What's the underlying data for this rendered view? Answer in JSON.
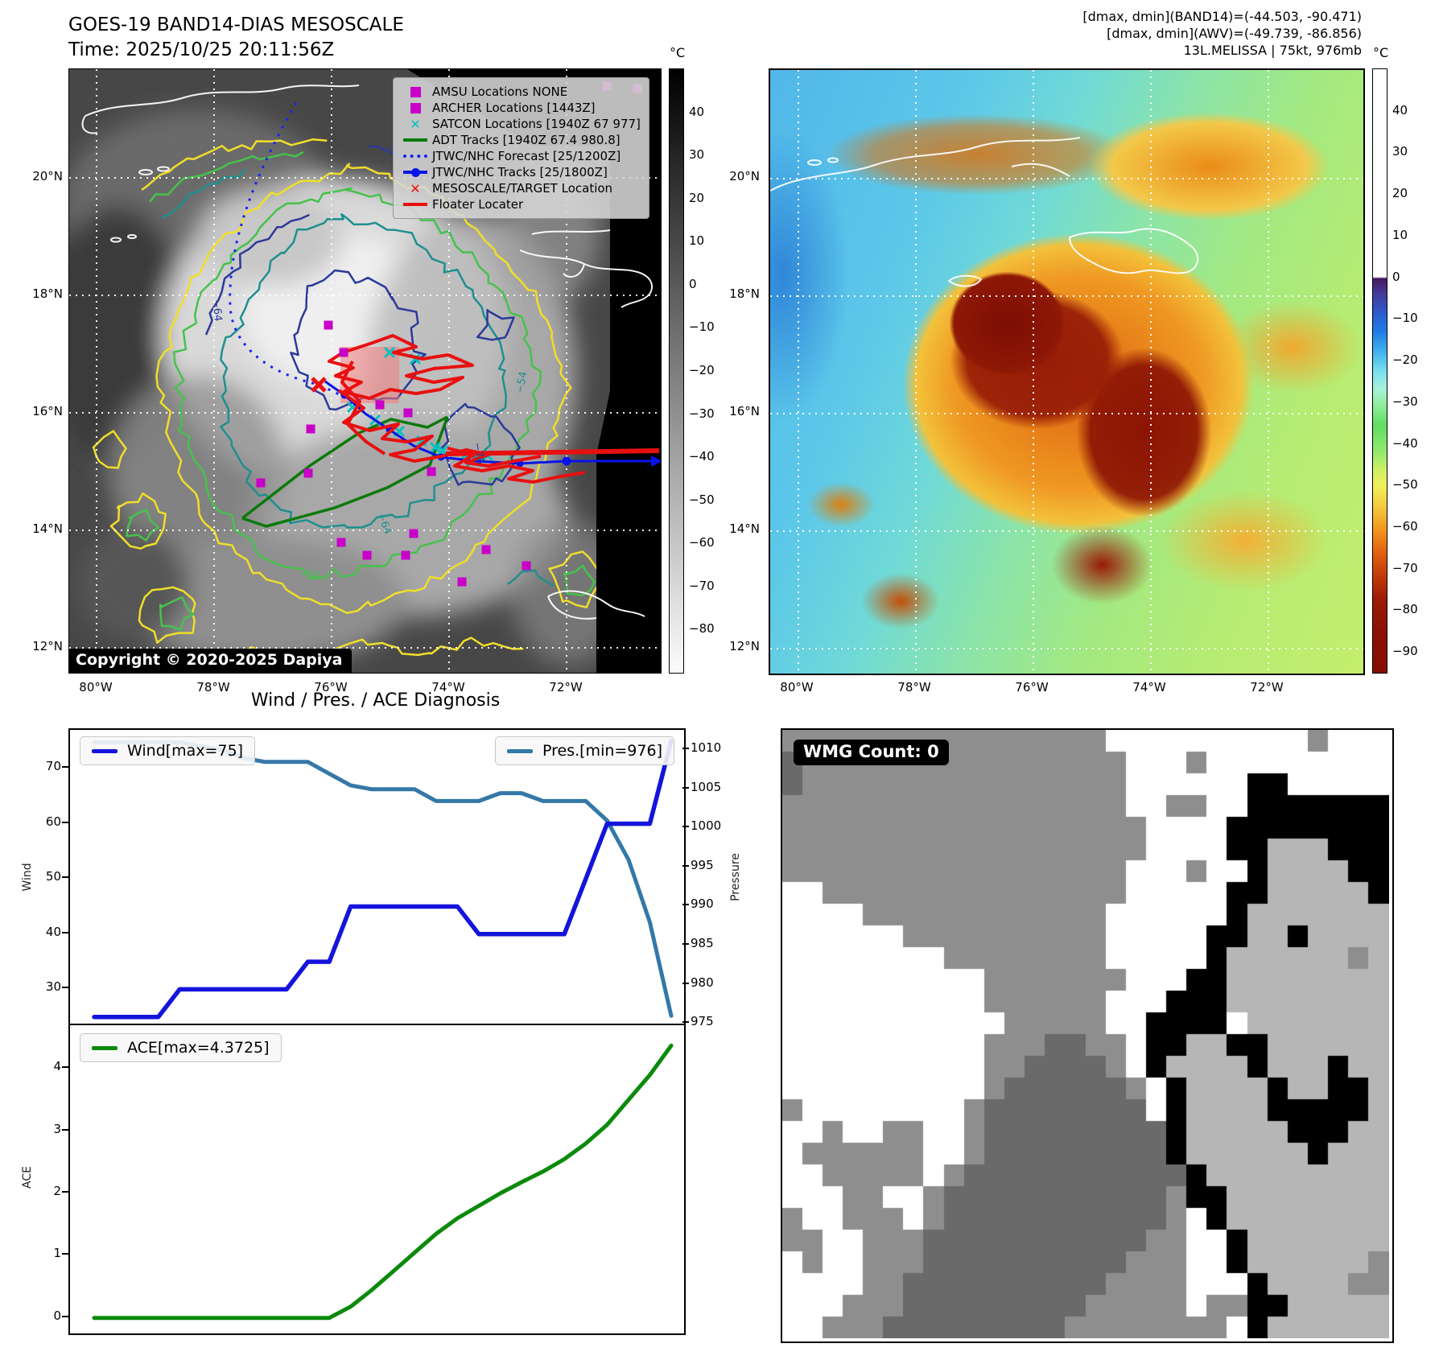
{
  "header": {
    "title_line1": "GOES-19 BAND14-DIAS MESOSCALE",
    "title_line2": "Time: 2025/10/25 20:11:56Z",
    "right_lines": [
      "[dmax, dmin](BAND14)=(-44.503, -90.471)",
      "[dmax, dmin](AWV)=(-49.739, -86.856)",
      "13L.MELISSA | 75kt, 976mb"
    ]
  },
  "map_axes": {
    "lat": [
      "20°N",
      "18°N",
      "16°N",
      "14°N",
      "12°N"
    ],
    "lon": [
      "80°W",
      "78°W",
      "76°W",
      "74°W",
      "72°W"
    ]
  },
  "band14_map": {
    "copyright": "Copyright © 2020-2025 Dapiya",
    "contour_labels": [
      "−76",
      "−64",
      "−54"
    ],
    "colors": {
      "amsu": "#c800c8",
      "satcon": "#00c2c2",
      "adt": "#0a7a0a",
      "forecast": "#1822f0",
      "jtwc": "#0814e8",
      "target": "#ee1111",
      "floater": "#e81010",
      "contours": {
        "yellow": "#f0de2a",
        "green": "#46c24c",
        "teal": "#1f8f8f",
        "navy": "#2b3a9a"
      }
    },
    "legend_items": [
      {
        "label": "AMSU Locations NONE",
        "marker": "square",
        "color": "#c800c8"
      },
      {
        "label": "ARCHER Locations [1443Z]",
        "marker": "square",
        "color": "#c800c8"
      },
      {
        "label": "SATCON Locations [1940Z 67 977]",
        "marker": "x",
        "color": "#00c2c2"
      },
      {
        "label": "ADT Tracks [1940Z 67.4 980.8]",
        "marker": "line",
        "color": "#0a7a0a"
      },
      {
        "label": "JTWC/NHC Forecast [25/1200Z]",
        "marker": "dotted",
        "color": "#1822f0"
      },
      {
        "label": "JTWC/NHC Tracks [25/1800Z]",
        "marker": "line-dot",
        "color": "#0814e8"
      },
      {
        "label": "MESOSCALE/TARGET Location",
        "marker": "x",
        "color": "#ee1111"
      },
      {
        "label": "Floater Locater",
        "marker": "line",
        "color": "#e81010"
      }
    ],
    "colorbar": {
      "unit": "°C",
      "ticks": [
        {
          "v": 40,
          "t": "40"
        },
        {
          "v": 30,
          "t": "30"
        },
        {
          "v": 20,
          "t": "20"
        },
        {
          "v": 10,
          "t": "10"
        },
        {
          "v": 0,
          "t": "0"
        },
        {
          "v": -10,
          "t": "−10"
        },
        {
          "v": -20,
          "t": "−20"
        },
        {
          "v": -30,
          "t": "−30"
        },
        {
          "v": -40,
          "t": "−40"
        },
        {
          "v": -50,
          "t": "−50"
        },
        {
          "v": -60,
          "t": "−60"
        },
        {
          "v": -70,
          "t": "−70"
        },
        {
          "v": -80,
          "t": "−80"
        }
      ]
    }
  },
  "awv_map": {
    "colorbar": {
      "unit": "°C",
      "ticks": [
        {
          "v": 40,
          "t": "40"
        },
        {
          "v": 30,
          "t": "30"
        },
        {
          "v": 20,
          "t": "20"
        },
        {
          "v": 10,
          "t": "10"
        },
        {
          "v": 0,
          "t": "0"
        },
        {
          "v": -10,
          "t": "−10"
        },
        {
          "v": -20,
          "t": "−20"
        },
        {
          "v": -30,
          "t": "−30"
        },
        {
          "v": -40,
          "t": "−40"
        },
        {
          "v": -50,
          "t": "−50"
        },
        {
          "v": -60,
          "t": "−60"
        },
        {
          "v": -70,
          "t": "−70"
        },
        {
          "v": -80,
          "t": "−80"
        },
        {
          "v": -90,
          "t": "−90"
        }
      ]
    }
  },
  "chart_data": [
    {
      "type": "line",
      "title": "Wind / Pres. / ACE Diagnosis",
      "x_points": 28,
      "series": [
        {
          "name": "Wind[max=75]",
          "yaxis": "left",
          "color": "#1414dc",
          "values": [
            25,
            25,
            25,
            25,
            30,
            30,
            30,
            30,
            30,
            30,
            35,
            35,
            45,
            45,
            45,
            45,
            45,
            45,
            40,
            40,
            40,
            40,
            40,
            50,
            60,
            60,
            60,
            75
          ]
        },
        {
          "name": "Pres.[min=976]",
          "yaxis": "right",
          "color": "#3478a8",
          "values": [
            1011,
            1011,
            1011,
            1011,
            1011,
            1010.5,
            1010,
            1009,
            1008.5,
            1008.5,
            1008.5,
            1007,
            1005.5,
            1005,
            1005,
            1005,
            1003.5,
            1003.5,
            1003.5,
            1004.5,
            1004.5,
            1003.5,
            1003.5,
            1003.5,
            1001,
            996,
            988,
            976
          ]
        }
      ],
      "ylabel_left": "Wind",
      "ylabel_right": "Pressure",
      "yticks_left": [
        30,
        40,
        50,
        60,
        70
      ],
      "ylim_left": [
        23.5,
        77
      ],
      "yticks_right": [
        975,
        980,
        985,
        990,
        995,
        1000,
        1005,
        1010
      ],
      "ylim_right": [
        974.8,
        1012.6
      ],
      "xticklabels": [],
      "legend_position": "upper-left and upper-right"
    },
    {
      "type": "line",
      "series": [
        {
          "name": "ACE[max=4.3725]",
          "color": "#0b8a0b",
          "values": [
            0,
            0,
            0,
            0,
            0,
            0,
            0,
            0,
            0,
            0,
            0,
            0,
            0.18,
            0.45,
            0.75,
            1.05,
            1.35,
            1.6,
            1.8,
            2.0,
            2.18,
            2.35,
            2.55,
            2.8,
            3.1,
            3.5,
            3.9,
            4.3725
          ]
        }
      ],
      "ylabel": "ACE",
      "yticks": [
        0,
        1,
        2,
        3,
        4
      ],
      "ylim": [
        -0.25,
        4.7
      ],
      "xticklabels": []
    }
  ],
  "wmg": {
    "label": "WMG Count: 0",
    "palette": {
      "W": "#ffffff",
      "G": "#8e8e8e",
      "D": "#6a6a6a",
      "L": "#b6b6b6",
      "B": "#000000"
    },
    "rows": [
      "GGGGGGGGGGGGGGGGWWWWWWWWWWGWWW",
      "DGGGGGGGGGGGGGGGGWWWGWWWWWWWWW",
      "DGGGGGGGGGGGGGGGGWWWWWWBBWWWWW",
      "GGGGGGGGGGGGGGGGGWWGGWWBBBBBBB",
      "GGGGGGGGGGGGGGGGGGWWWWBBBBBBBB",
      "GGGGGGGGGGGGGGGGGGWWWWBBLLLBBB",
      "GGGGGGGGGGGGGGGGGWWWGWWBLLLLBB",
      "WWGGGGGGGGGGGGGGGWWWWWBBLLLLLB",
      "WWWWGGGGGGGGGGGGWWWWWWBLLLLLLL",
      "WWWWWWGGGGGGGGGGWWWWWBBLLBLLLL",
      "WWWWWWWWGGGGGGGGWWWWWBLLLLLLGL",
      "WWWWWWWWWWGGGGGGGWWWBBLLLLLLLL",
      "WWWWWWWWWWGGGGGGWWWBBBLLLLLLLL",
      "WWWWWWWWWWWGGGGGWWBBBBWLLLLLLL",
      "WWWWWWWWWWGGGDDGGWBBLLBBLLLLLL",
      "WWWWWWWWWWGGDDDDGWBLLLLBLLLBLL",
      "WWWWWWWWWWGDDDDDDGWBLLLLBLLBBL",
      "GWWWWWWWWGDDDDDDDDWBLLLLBBBBBL",
      "WWGWWGGWWGDDDDDDDDDBLLLLLBBBLL",
      "WGGGGGGWWGDDDDDDDDDBLLLLLLBLLL",
      "WWGGGGGWGDDDDDDDDDDDBLLLLLLLLL",
      "WWWGGWWGDDDDDDDDDDDGBBLLLLLLLL",
      "GWWGGGWGDDDDDDDDDDDGWBLLLLLLLL",
      "GGWWGGGDDDDDDDDDDDGGWWBLLLLLLL",
      "WGWWGGGDDDDDDDDDDGGGWWBLLLLLLG",
      "WWWWGGDDDDDDDDDDGGGGWWWBLLLLGG",
      "WWWGGGDDDDDDDDDGGGGGWGGBBLLLLL",
      "WWGGGDDDDDDDDDGGGGGGGGWBLLLLLL"
    ]
  }
}
